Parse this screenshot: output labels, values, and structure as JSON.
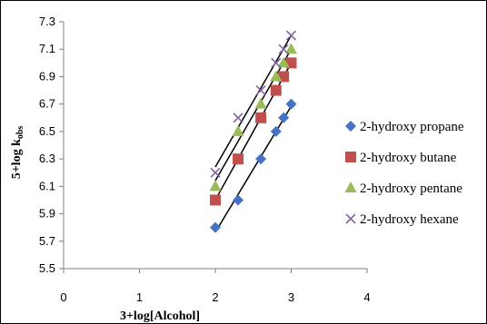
{
  "chart_data": {
    "type": "scatter",
    "xlabel": "3+log[Alcohol]",
    "ylabel": {
      "base": "5+log k",
      "subscript": "obs"
    },
    "xlim": [
      0,
      4
    ],
    "ylim": [
      5.5,
      7.3
    ],
    "xticks": [
      "0",
      "1",
      "2",
      "3",
      "4"
    ],
    "yticks": [
      "5.5",
      "5.7",
      "5.9",
      "6.1",
      "6.3",
      "6.5",
      "6.7",
      "6.9",
      "7.1",
      "7.3"
    ],
    "grid": false,
    "legend_position": "right",
    "trendlines": true,
    "series": [
      {
        "name": "2-hydroxy propane",
        "marker": "diamond",
        "color": "#4472C4",
        "x": [
          2.0,
          2.3,
          2.6,
          2.8,
          2.9,
          3.0
        ],
        "y": [
          5.8,
          6.0,
          6.3,
          6.5,
          6.6,
          6.7
        ]
      },
      {
        "name": "2-hydroxy butane",
        "marker": "square",
        "color": "#C0504D",
        "x": [
          2.0,
          2.3,
          2.6,
          2.8,
          2.9,
          3.0
        ],
        "y": [
          6.0,
          6.3,
          6.6,
          6.8,
          6.9,
          7.0
        ]
      },
      {
        "name": "2-hydroxy pentane",
        "marker": "triangle",
        "color": "#9BBB59",
        "x": [
          2.0,
          2.3,
          2.6,
          2.8,
          2.9,
          3.0
        ],
        "y": [
          6.1,
          6.5,
          6.7,
          6.9,
          7.0,
          7.1
        ]
      },
      {
        "name": "2-hydroxy hexane",
        "marker": "x",
        "color": "#8064A2",
        "x": [
          2.0,
          2.3,
          2.6,
          2.8,
          2.9,
          3.0
        ],
        "y": [
          6.2,
          6.6,
          6.8,
          7.0,
          7.1,
          7.2
        ]
      }
    ]
  }
}
